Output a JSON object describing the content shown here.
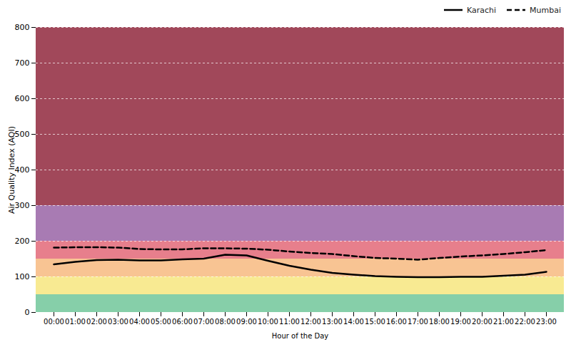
{
  "chart_data": {
    "type": "line",
    "x_label": "Hour of the Day",
    "y_label": "Air Quality Index (AQI)",
    "categories": [
      "00:00",
      "01:00",
      "02:00",
      "03:00",
      "04:00",
      "05:00",
      "06:00",
      "07:00",
      "08:00",
      "09:00",
      "10:00",
      "11:00",
      "12:00",
      "13:00",
      "14:00",
      "15:00",
      "16:00",
      "17:00",
      "18:00",
      "19:00",
      "20:00",
      "21:00",
      "22:00",
      "23:00"
    ],
    "series": [
      {
        "name": "Karachi",
        "color": "#000000",
        "line_style": "solid",
        "values": [
          135,
          142,
          147,
          148,
          146,
          146,
          149,
          151,
          162,
          160,
          145,
          131,
          120,
          111,
          106,
          102,
          100,
          99,
          99,
          100,
          100,
          103,
          106,
          114
        ]
      },
      {
        "name": "Mumbai",
        "color": "#000000",
        "line_style": "dashed",
        "values": [
          182,
          183,
          183,
          182,
          178,
          177,
          177,
          180,
          180,
          179,
          176,
          171,
          167,
          164,
          158,
          153,
          151,
          148,
          153,
          157,
          160,
          164,
          169,
          175
        ]
      }
    ],
    "bands": [
      {
        "from": 0,
        "to": 50,
        "color": "#86cfa9"
      },
      {
        "from": 50,
        "to": 100,
        "color": "#f8ea92"
      },
      {
        "from": 100,
        "to": 150,
        "color": "#f8c493"
      },
      {
        "from": 150,
        "to": 200,
        "color": "#e77f8c"
      },
      {
        "from": 200,
        "to": 300,
        "color": "#a87bb3"
      },
      {
        "from": 300,
        "to": 800,
        "color": "#a1485a"
      }
    ],
    "ylim": [
      0,
      800
    ],
    "yticks": [
      0,
      100,
      200,
      300,
      400,
      500,
      600,
      700,
      800
    ],
    "grid": true,
    "legend": "top-right"
  }
}
